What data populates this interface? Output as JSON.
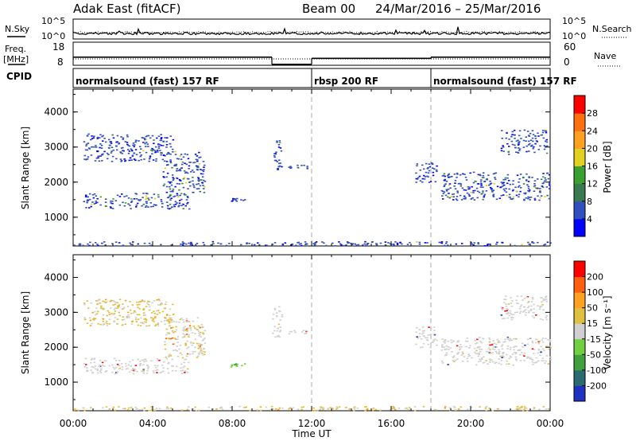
{
  "header": {
    "title": "Adak East (fitACF)",
    "beam": "Beam 00",
    "date_range": "24/Mar/2016 – 25/Mar/2016"
  },
  "noise_panel": {
    "left_label": "N.Sky",
    "right_label": "N.Search",
    "ticks_left": [
      "10^5",
      "10^0"
    ],
    "ticks_right": [
      "10^5",
      "10^0"
    ]
  },
  "freq_panel": {
    "left_label_1": "Freq.",
    "left_label_2": "[MHz]",
    "right_label": "Nave",
    "ticks_left": [
      "18",
      "8"
    ],
    "ticks_right": [
      "60",
      "0"
    ],
    "freq_segments": [
      {
        "start": 0,
        "end": 10,
        "freq": 11.5
      },
      {
        "start": 10,
        "end": 12,
        "freq": 8.4
      },
      {
        "start": 12,
        "end": 18,
        "freq": 11.0
      },
      {
        "start": 18,
        "end": 24,
        "freq": 11.5
      }
    ]
  },
  "cpid": {
    "label": "CPID",
    "segments": [
      {
        "start": 0,
        "end": 12,
        "text": "normalsound (fast) 157 RF"
      },
      {
        "start": 12,
        "end": 18,
        "text": "rbsp 200 RF"
      },
      {
        "start": 18,
        "end": 24,
        "text": "normalsound (fast) 157 RF"
      }
    ]
  },
  "x_axis": {
    "label": "Time UT",
    "ticks": [
      "00:00",
      "04:00",
      "08:00",
      "12:00",
      "16:00",
      "20:00",
      "00:00"
    ]
  },
  "chart_data": [
    {
      "type": "heatmap",
      "name": "power",
      "ylabel": "Slant Range [km]",
      "ylim": [
        180,
        4650
      ],
      "xlim": [
        0,
        24
      ],
      "y_ticks": [
        1000,
        2000,
        3000,
        4000
      ],
      "colorbar": {
        "label": "Power [dB]",
        "tick_labels": [
          "4",
          "8",
          "12",
          "16",
          "20",
          "24",
          "28"
        ],
        "range": [
          0,
          32
        ],
        "colors": [
          "#0000ff",
          "#3050c0",
          "#3a7a50",
          "#3aa030",
          "#e0d020",
          "#ffa020",
          "#ff7010",
          "#ff0000"
        ]
      },
      "regions": [
        {
          "x": [
            0.5,
            5.8
          ],
          "y": [
            1250,
            1700
          ],
          "level": 0.45
        },
        {
          "x": [
            4.5,
            6.6
          ],
          "y": [
            1700,
            2900
          ],
          "level": 0.35
        },
        {
          "x": [
            0.5,
            5.0
          ],
          "y": [
            2600,
            3400
          ],
          "level": 0.15
        },
        {
          "x": [
            7.9,
            8.6
          ],
          "y": [
            1450,
            1550
          ],
          "level": 0.2
        },
        {
          "x": [
            10.0,
            10.5
          ],
          "y": [
            2300,
            3200
          ],
          "level": 0.2
        },
        {
          "x": [
            10.8,
            11.8
          ],
          "y": [
            2400,
            2500
          ],
          "level": 0.2
        },
        {
          "x": [
            17.2,
            18.3
          ],
          "y": [
            2000,
            2600
          ],
          "level": 0.15
        },
        {
          "x": [
            18.5,
            24.0
          ],
          "y": [
            1500,
            2300
          ],
          "level": 0.35
        },
        {
          "x": [
            21.5,
            23.8
          ],
          "y": [
            2800,
            3500
          ],
          "level": 0.15
        },
        {
          "x": [
            0.0,
            24.0
          ],
          "y": [
            200,
            320
          ],
          "level": 0.1
        }
      ]
    },
    {
      "type": "heatmap",
      "name": "velocity",
      "ylabel": "Slant Range [km]",
      "ylim": [
        180,
        4650
      ],
      "xlim": [
        0,
        24
      ],
      "y_ticks": [
        1000,
        2000,
        3000,
        4000
      ],
      "colorbar": {
        "label": "Velocity [m s⁻¹]",
        "tick_labels": [
          "200",
          "100",
          "50",
          "15",
          "-15",
          "-50",
          "-100",
          "-200"
        ],
        "colors": [
          "#2030c0",
          "#2a6a70",
          "#40a040",
          "#70d040",
          "#d0d0d0",
          "#e0c040",
          "#ffa020",
          "#ff6010",
          "#ff0000"
        ]
      },
      "regions": [
        {
          "x": [
            0.5,
            5.8
          ],
          "y": [
            1250,
            1700
          ],
          "level": "gray"
        },
        {
          "x": [
            4.5,
            6.6
          ],
          "y": [
            1700,
            2900
          ],
          "level": "gray-tan"
        },
        {
          "x": [
            0.5,
            5.0
          ],
          "y": [
            2600,
            3400
          ],
          "level": "tan"
        },
        {
          "x": [
            7.9,
            8.6
          ],
          "y": [
            1450,
            1550
          ],
          "level": "green"
        },
        {
          "x": [
            10.0,
            10.5
          ],
          "y": [
            2300,
            3200
          ],
          "level": "gray"
        },
        {
          "x": [
            10.8,
            11.8
          ],
          "y": [
            2400,
            2500
          ],
          "level": "gray"
        },
        {
          "x": [
            17.2,
            18.3
          ],
          "y": [
            2000,
            2600
          ],
          "level": "gray"
        },
        {
          "x": [
            18.5,
            24.0
          ],
          "y": [
            1500,
            2300
          ],
          "level": "gray"
        },
        {
          "x": [
            21.5,
            23.8
          ],
          "y": [
            2800,
            3500
          ],
          "level": "gray"
        },
        {
          "x": [
            0.0,
            24.0
          ],
          "y": [
            200,
            320
          ],
          "level": "tan"
        }
      ]
    }
  ]
}
